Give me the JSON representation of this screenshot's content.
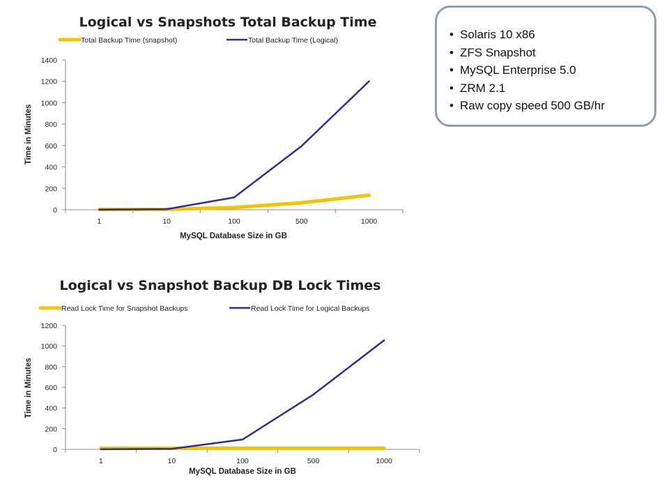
{
  "info_box": {
    "items": [
      "Solaris 10 x86",
      "ZFS Snapshot",
      "MySQL Enterprise 5.0",
      "ZRM 2.1",
      "Raw copy speed 500 GB/hr"
    ]
  },
  "chart_data": [
    {
      "type": "line",
      "title": "Logical vs Snapshots Total Backup Time",
      "xlabel": "MySQL Database Size in GB",
      "ylabel": "Time in Minutes",
      "categories": [
        "1",
        "10",
        "100",
        "500",
        "1000"
      ],
      "ylim": [
        0,
        1400
      ],
      "yticks": [
        0,
        200,
        400,
        600,
        800,
        1000,
        1200,
        1400
      ],
      "legend_position": "top",
      "grid": false,
      "series": [
        {
          "name": "Total Backup Time  (snapshot)",
          "color": "#f5c400",
          "values": [
            2,
            3,
            20,
            65,
            135
          ]
        },
        {
          "name": "Total Backup Time  (Logical)",
          "color": "#2e2d8c",
          "values": [
            1,
            5,
            115,
            595,
            1200
          ]
        }
      ]
    },
    {
      "type": "line",
      "title": "Logical vs Snapshot Backup DB Lock Times",
      "xlabel": "MySQL Database Size in GB",
      "ylabel": "Time in Minutes",
      "categories": [
        "1",
        "10",
        "100",
        "500",
        "1000"
      ],
      "ylim": [
        0,
        1200
      ],
      "yticks": [
        0,
        200,
        400,
        600,
        800,
        1000,
        1200
      ],
      "legend_position": "top",
      "grid": false,
      "series": [
        {
          "name": "Read Lock Time for Snapshot Backups",
          "color": "#f5c400",
          "values": [
            10,
            10,
            10,
            10,
            10
          ]
        },
        {
          "name": "Read Lock Time for Logical Backups",
          "color": "#2e2d8c",
          "values": [
            1,
            5,
            95,
            530,
            1055
          ]
        }
      ]
    }
  ]
}
